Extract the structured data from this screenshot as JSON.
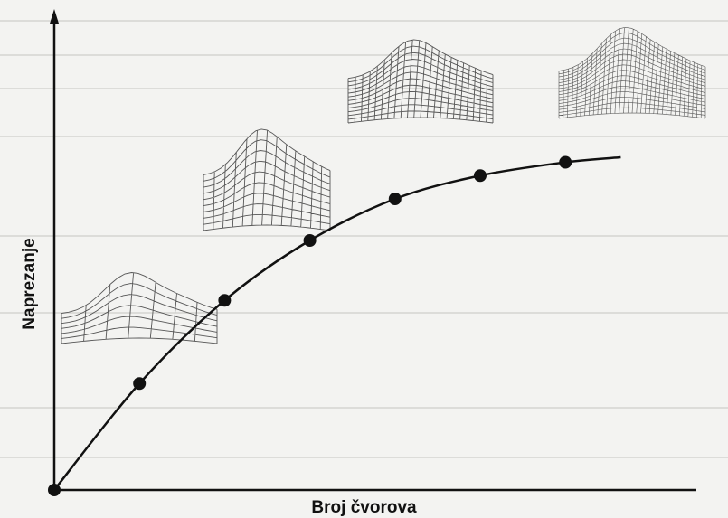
{
  "chart_data": {
    "type": "line",
    "title": "",
    "xlabel": "Broj čvorova",
    "ylabel": "Naprezanje",
    "x": [
      0,
      1,
      2,
      3,
      4,
      5,
      6,
      7
    ],
    "y": [
      0,
      0.32,
      0.57,
      0.75,
      0.875,
      0.945,
      0.985,
      1.0
    ],
    "points": [
      {
        "x": 0,
        "y": 0
      },
      {
        "x": 1,
        "y": 0.32
      },
      {
        "x": 2,
        "y": 0.57
      },
      {
        "x": 3,
        "y": 0.75
      },
      {
        "x": 4,
        "y": 0.875
      },
      {
        "x": 5,
        "y": 0.945
      },
      {
        "x": 6,
        "y": 0.985
      }
    ],
    "curve_end": {
      "x": 6.65,
      "y": 1.0
    },
    "grid": false,
    "legend": "none",
    "colors": {
      "line": "#111111",
      "marker": "#111111",
      "background": "#f3f3f1",
      "mesh": "#555555"
    },
    "mesh_insets": [
      {
        "name": "coarse-mesh",
        "rows": 6,
        "cols": 7
      },
      {
        "name": "medium-mesh",
        "rows": 9,
        "cols": 13
      },
      {
        "name": "fine-mesh",
        "rows": 12,
        "cols": 22
      },
      {
        "name": "finest-mesh",
        "rows": 16,
        "cols": 34
      }
    ]
  }
}
